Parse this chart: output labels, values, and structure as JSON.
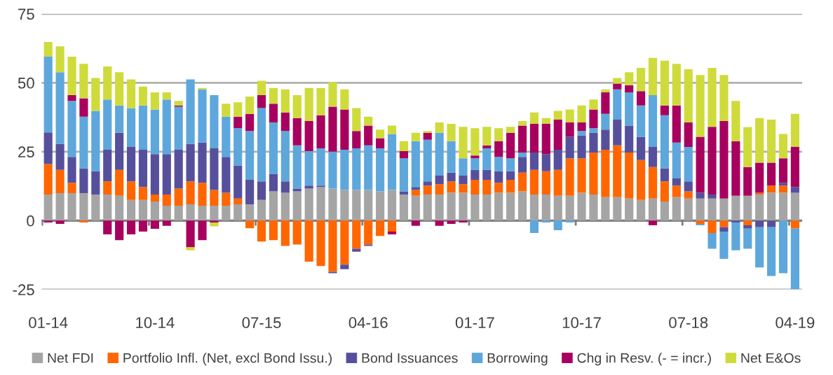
{
  "chart_data": {
    "type": "bar",
    "stacked": true,
    "grid": "y",
    "legend": "bottom",
    "categories": [
      "01-14",
      null,
      null,
      null,
      null,
      null,
      null,
      null,
      null,
      "10-14",
      null,
      null,
      null,
      null,
      null,
      null,
      null,
      null,
      "07-15",
      null,
      null,
      null,
      null,
      null,
      null,
      null,
      null,
      "04-16",
      null,
      null,
      null,
      null,
      null,
      null,
      null,
      null,
      "01-17",
      null,
      null,
      null,
      null,
      null,
      null,
      null,
      null,
      "10-17",
      null,
      null,
      null,
      null,
      null,
      null,
      null,
      null,
      "07-18",
      null,
      null,
      null,
      null,
      null,
      null,
      null,
      null,
      "04-19"
    ],
    "ylim": [
      -25,
      75
    ],
    "yticks": [
      -25,
      0,
      25,
      50,
      75
    ],
    "series": [
      {
        "name": "Net FDI",
        "color": "#a5a5a5",
        "values": [
          9.5,
          10,
          10,
          10,
          9.5,
          9.5,
          9,
          7.5,
          7.5,
          6.9,
          5.4,
          5.4,
          5.9,
          5.4,
          5.4,
          5.4,
          5.9,
          5.9,
          7.5,
          10.6,
          10.1,
          10.6,
          11.6,
          12.2,
          11.6,
          11.1,
          11.1,
          11.1,
          10.6,
          11.1,
          9.5,
          9,
          9.5,
          9.5,
          10.1,
          10.1,
          9.5,
          9.5,
          10.1,
          10.1,
          10.6,
          9.5,
          9.5,
          9,
          9,
          10.1,
          9.5,
          8.5,
          8.5,
          8,
          7.5,
          8,
          6.9,
          8.5,
          8,
          8,
          8,
          8,
          9,
          9,
          9.5,
          10.1,
          10.1,
          10.1
        ]
      },
      {
        "name": "Portfolio Infl. (Net, excl Bond Issu.)",
        "color": "#ff6600",
        "values": [
          11,
          8.4,
          3.7,
          -0.7,
          0,
          4.7,
          9.4,
          6.7,
          4.7,
          2.6,
          4.1,
          6.2,
          8.3,
          8.3,
          5.7,
          4.7,
          2.1,
          -2.8,
          -7.6,
          -7.1,
          -9.2,
          -8.7,
          -14.9,
          -16.5,
          -18.6,
          -16,
          -10.2,
          -8.7,
          -5.6,
          -4,
          0,
          2.1,
          3.2,
          3.7,
          4.1,
          3.1,
          5.3,
          5.3,
          3.6,
          4.7,
          6.8,
          8.9,
          8.4,
          9.4,
          13.6,
          12.5,
          15.2,
          17.2,
          18.8,
          16.7,
          14.5,
          11.4,
          7.3,
          4.2,
          2.6,
          -1.2,
          -4.5,
          -2.4,
          0,
          -1.7,
          0.6,
          2.6,
          2.6,
          -2.9
        ]
      },
      {
        "name": "Bond Issuances",
        "color": "#56509c",
        "values": [
          11.5,
          9.4,
          9.4,
          8.9,
          8.4,
          11.5,
          13.5,
          12.5,
          13.5,
          14.6,
          14.6,
          14.1,
          13.6,
          14.6,
          15.1,
          13,
          12,
          8.9,
          6.7,
          6.2,
          4.1,
          1,
          1.1,
          0.5,
          -0.5,
          -1.6,
          -1.1,
          -0.5,
          0,
          0,
          1.1,
          1.1,
          1.5,
          3.1,
          3.2,
          3.1,
          3.6,
          3.6,
          4.2,
          3.1,
          5.7,
          6.3,
          6.2,
          7.3,
          7.8,
          8.3,
          7.2,
          7.3,
          9.3,
          9.8,
          8.4,
          7.3,
          4.7,
          2.6,
          3.6,
          2.1,
          1.5,
          -1.6,
          -0.7,
          -1.2,
          -2.4,
          -2.4,
          1,
          2.1
        ]
      },
      {
        "name": "Borrowing",
        "color": "#5ea7dc",
        "values": [
          27.5,
          26,
          20.3,
          18.8,
          21.9,
          18.2,
          9.9,
          14.1,
          16.1,
          16.2,
          19.8,
          15.6,
          23.4,
          19.3,
          19.3,
          14.6,
          13.5,
          17.7,
          26.6,
          18.8,
          18.3,
          15.7,
          12.5,
          13.5,
          13.4,
          14.6,
          15.1,
          16.2,
          15.6,
          20.3,
          12,
          16.6,
          15.1,
          15.6,
          11.4,
          6.3,
          4.2,
          7.8,
          5.2,
          4.7,
          1.6,
          -4.5,
          -0.7,
          -3.5,
          -0.7,
          1.6,
          1.6,
          5.7,
          11,
          12,
          11.4,
          18.8,
          19.3,
          13,
          12.5,
          -0.5,
          -5.7,
          -9.9,
          -10.1,
          -7.3,
          -14.6,
          -17.7,
          -19.1,
          -22
        ]
      },
      {
        "name": "Chg in Resv. (- = incr.)",
        "color": "#a8005f",
        "values": [
          -0.7,
          -1.2,
          2.1,
          6.7,
          0,
          -5,
          -7.1,
          -5,
          -4,
          -3,
          -1.9,
          0.5,
          -9.7,
          -7.1,
          -0.7,
          0,
          4.2,
          6.2,
          4.7,
          6.8,
          6.7,
          9.9,
          10.9,
          12,
          16.3,
          14.6,
          6.3,
          7.2,
          3.7,
          -1,
          2.6,
          -1.9,
          2.6,
          -1.9,
          -1.2,
          -0.7,
          1,
          1.1,
          5.7,
          9.3,
          9.8,
          10.4,
          11,
          10.9,
          5.2,
          3.1,
          6.8,
          7.8,
          2.1,
          2.6,
          5.2,
          -1.7,
          3.6,
          13.5,
          8.9,
          20.3,
          24.5,
          28.1,
          19.8,
          10.4,
          10.9,
          8.3,
          8.9,
          14.5
        ]
      },
      {
        "name": "Net E&Os",
        "color": "#cfdb3a",
        "values": [
          5.3,
          9.4,
          14,
          12.5,
          11.9,
          12,
          12,
          10.4,
          6.8,
          6.2,
          2.6,
          1.6,
          -1.1,
          0.5,
          -1.4,
          4.7,
          5.2,
          6.3,
          5.2,
          5.7,
          8.4,
          8.3,
          12,
          9.9,
          8.9,
          7.3,
          8.3,
          3.2,
          3.1,
          3.1,
          3.6,
          3.1,
          0.6,
          3.7,
          6.3,
          11.4,
          9.9,
          6.7,
          4.7,
          2.1,
          1.6,
          4.1,
          2.1,
          3.2,
          4.7,
          6.2,
          3.6,
          1.1,
          2,
          4.7,
          8.4,
          13.5,
          16.2,
          15.1,
          19.3,
          22.4,
          21.4,
          16.7,
          14.6,
          14.5,
          16.2,
          15.6,
          8.8,
          12
        ]
      }
    ]
  }
}
